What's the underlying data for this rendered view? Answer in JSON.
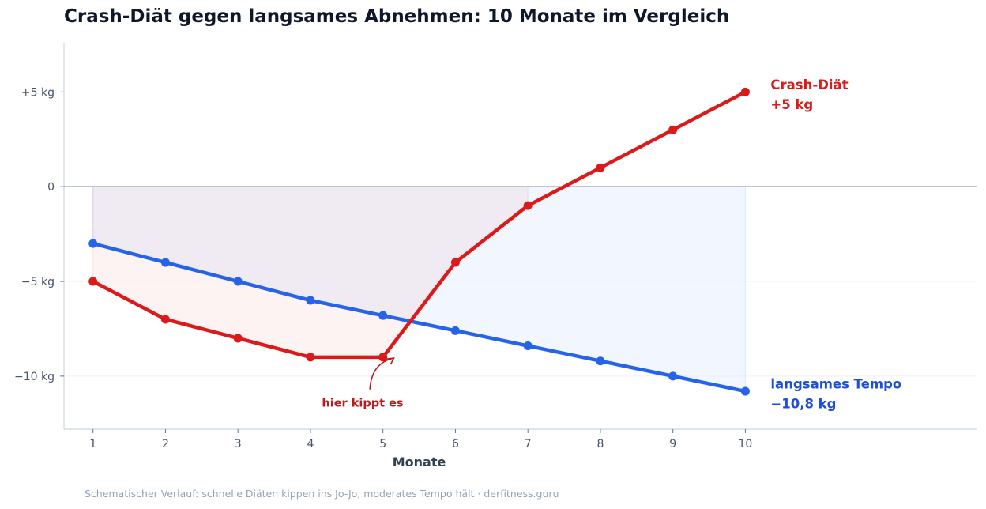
{
  "chart_data": {
    "type": "line",
    "title": "Crash-Diät gegen langsames Abnehmen: 10 Monate im Vergleich",
    "xlabel": "Monate",
    "ylabel": "",
    "x": [
      1,
      2,
      3,
      4,
      5,
      6,
      7,
      8,
      9,
      10
    ],
    "xlim": [
      0.6,
      13.2
    ],
    "ylim": [
      -12.8,
      7.6
    ],
    "y_ticks": [
      {
        "value": 5,
        "label": "+5 kg"
      },
      {
        "value": 0,
        "label": "0"
      },
      {
        "value": -5,
        "label": "−5 kg"
      },
      {
        "value": -10,
        "label": "−10 kg"
      }
    ],
    "x_tick_labels": [
      "1",
      "2",
      "3",
      "4",
      "5",
      "6",
      "7",
      "8",
      "9",
      "10"
    ],
    "grid": "horizontal, light",
    "zero_line": true,
    "series": [
      {
        "name": "Crash-Diät",
        "end_label": [
          "Crash-Diät",
          "+5 kg"
        ],
        "color": "#dc1a1a",
        "label_color": "#dc1a1a",
        "values": [
          -5,
          -7,
          -8,
          -9,
          -9,
          -4,
          -1,
          1,
          3,
          5
        ]
      },
      {
        "name": "langsames Tempo",
        "end_label": [
          "langsames Tempo",
          "−10,8 kg"
        ],
        "color": "#2563eb",
        "label_color": "#1d4ed8",
        "values": [
          -3,
          -4,
          -5,
          -6,
          -6.8,
          -7.6,
          -8.4,
          -9.2,
          -10,
          -10.8
        ]
      }
    ],
    "annotations": [
      {
        "text": "hier kippt es",
        "points_to": {
          "x": 5.15,
          "y": -9.05
        },
        "color": "#b91c1c"
      }
    ],
    "footer": "Schematischer Verlauf: schnelle Diäten kippen ins Jo-Jo, moderates Tempo hält · derfitness.guru"
  }
}
